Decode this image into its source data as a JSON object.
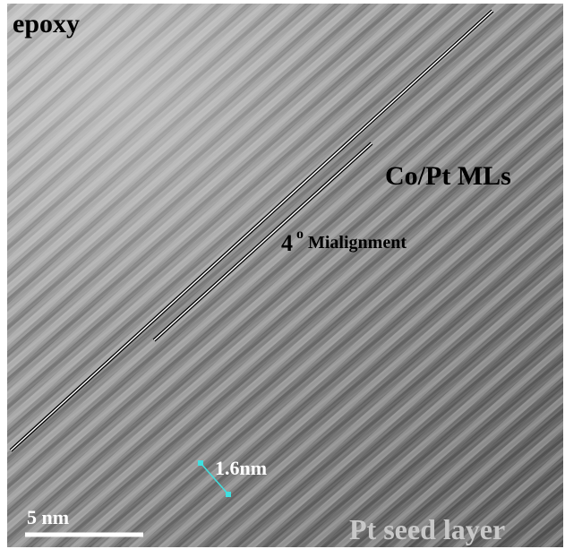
{
  "image": {
    "labels": {
      "epoxy": "epoxy",
      "layers": "Co/Pt MLs",
      "angle": "4",
      "degree": "o",
      "misalignment": "Mialignment",
      "spacing": "1.6nm",
      "scale_bar": "5 nm",
      "seed": "Pt seed layer"
    }
  }
}
